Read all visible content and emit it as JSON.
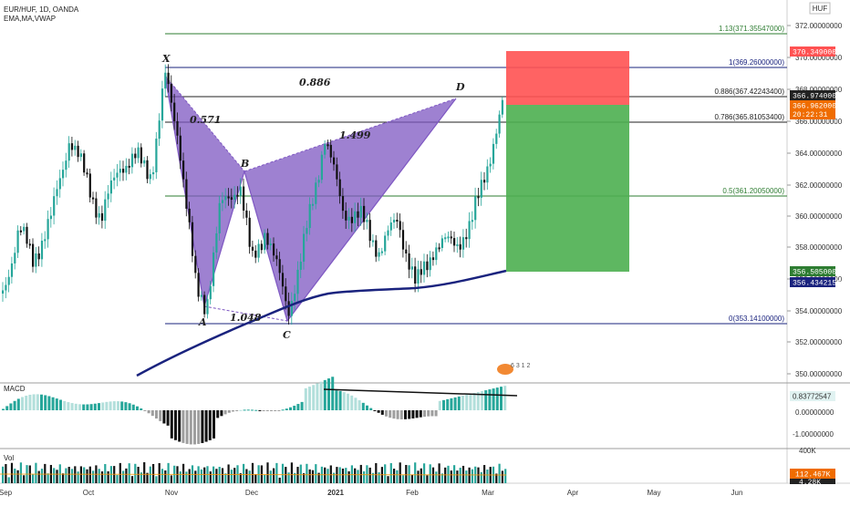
{
  "header": {
    "symbol_line": "EUR/HUF, 1D, OANDA",
    "indicators_line": "EMA,MA,VWAP",
    "currency": "HUF"
  },
  "price_axis": {
    "ticks": [
      "372.00000000",
      "370.00000000",
      "368.00000000",
      "366.00000000",
      "364.00000000",
      "362.00000000",
      "360.00000000",
      "358.00000000",
      "356.00000000",
      "354.00000000",
      "352.00000000",
      "350.00000000"
    ],
    "tags": {
      "stop": "370.34900000",
      "last": "366.97400000",
      "current": "366.96200000",
      "countdown": "20:22:31",
      "target": "356.50500000",
      "ema": "356.43421500"
    }
  },
  "fib_levels": [
    {
      "label": "1.13(371.35547000)",
      "color": "#2e7d32"
    },
    {
      "label": "1(369.26000000)",
      "color": "#1a237e"
    },
    {
      "label": "0.886(367.42243400)",
      "color": "#222222"
    },
    {
      "label": "0.786(365.81053400)",
      "color": "#222222"
    },
    {
      "label": "0.5(361.20050000)",
      "color": "#2e7d32"
    },
    {
      "label": "0(353.14100000)",
      "color": "#1a237e"
    }
  ],
  "pattern": {
    "points": [
      "X",
      "A",
      "B",
      "C",
      "D"
    ],
    "ratios": [
      "0.571",
      "1.048",
      "1.499",
      "0.886"
    ],
    "color": "#7e57c2"
  },
  "macd": {
    "title": "MACD",
    "value": "0.83772547",
    "ticks": [
      "0.00000000",
      "-1.00000000"
    ]
  },
  "volume": {
    "title": "Vol",
    "value": "112.467K",
    "top_tick": "400K",
    "bottom_tick": "4.28K"
  },
  "time_axis": [
    "Sep",
    "Oct",
    "Nov",
    "Dec",
    "2021",
    "Feb",
    "Mar",
    "Apr",
    "May",
    "Jun"
  ],
  "watermark": "6 3 1 2",
  "colors": {
    "up": "#26a69a",
    "down": "#111111",
    "stop_zone": "#ff5252",
    "target_zone": "#4caf50",
    "ema": "#1a237e"
  }
}
